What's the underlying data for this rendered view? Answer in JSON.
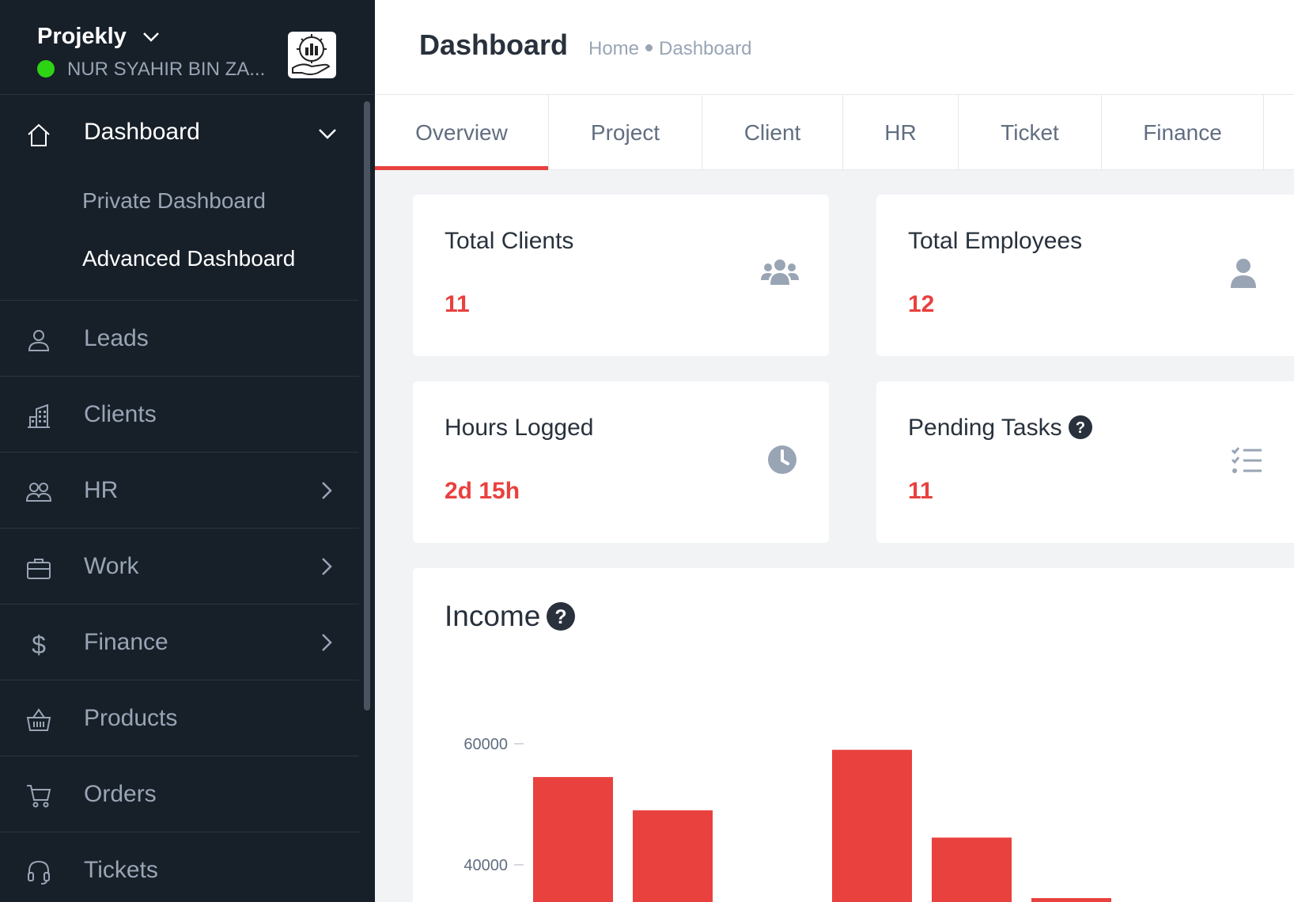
{
  "brand": {
    "name": "Projekly",
    "user": "NUR SYAHIR BIN ZA..."
  },
  "sidebar": {
    "dashboard": {
      "label": "Dashboard",
      "sub": [
        "Private Dashboard",
        "Advanced Dashboard"
      ]
    },
    "items": [
      {
        "label": "Leads",
        "icon": "user-icon",
        "arrow": false
      },
      {
        "label": "Clients",
        "icon": "building-icon",
        "arrow": false
      },
      {
        "label": "HR",
        "icon": "users-icon",
        "arrow": true
      },
      {
        "label": "Work",
        "icon": "briefcase-icon",
        "arrow": true
      },
      {
        "label": "Finance",
        "icon": "dollar-icon",
        "arrow": true
      },
      {
        "label": "Products",
        "icon": "basket-icon",
        "arrow": false
      },
      {
        "label": "Orders",
        "icon": "cart-icon",
        "arrow": false
      },
      {
        "label": "Tickets",
        "icon": "headset-icon",
        "arrow": false
      }
    ]
  },
  "header": {
    "title": "Dashboard",
    "breadcrumb": [
      "Home",
      "Dashboard"
    ]
  },
  "tabs": [
    "Overview",
    "Project",
    "Client",
    "HR",
    "Ticket",
    "Finance"
  ],
  "active_tab": "Overview",
  "cards": {
    "total_clients": {
      "title": "Total Clients",
      "value": "11",
      "icon": "users-icon"
    },
    "total_employees": {
      "title": "Total Employees",
      "value": "12",
      "icon": "user-icon"
    },
    "hours_logged": {
      "title": "Hours Logged",
      "value": "2d 15h",
      "icon": "clock-icon"
    },
    "pending_tasks": {
      "title": "Pending Tasks",
      "value": "11",
      "icon": "task-list-icon"
    }
  },
  "colors": {
    "accent": "#e8413e",
    "sidebar_bg": "#171f29",
    "status_online": "#2dd413"
  },
  "chart_data": {
    "type": "bar",
    "title": "Income",
    "xlabel": "",
    "ylabel": "",
    "y_ticks": [
      40000,
      60000
    ],
    "bars": [
      54500,
      49000,
      59000,
      44500,
      34500
    ],
    "note_visible_range": "chart cropped at bottom; values estimated from visible portion"
  }
}
